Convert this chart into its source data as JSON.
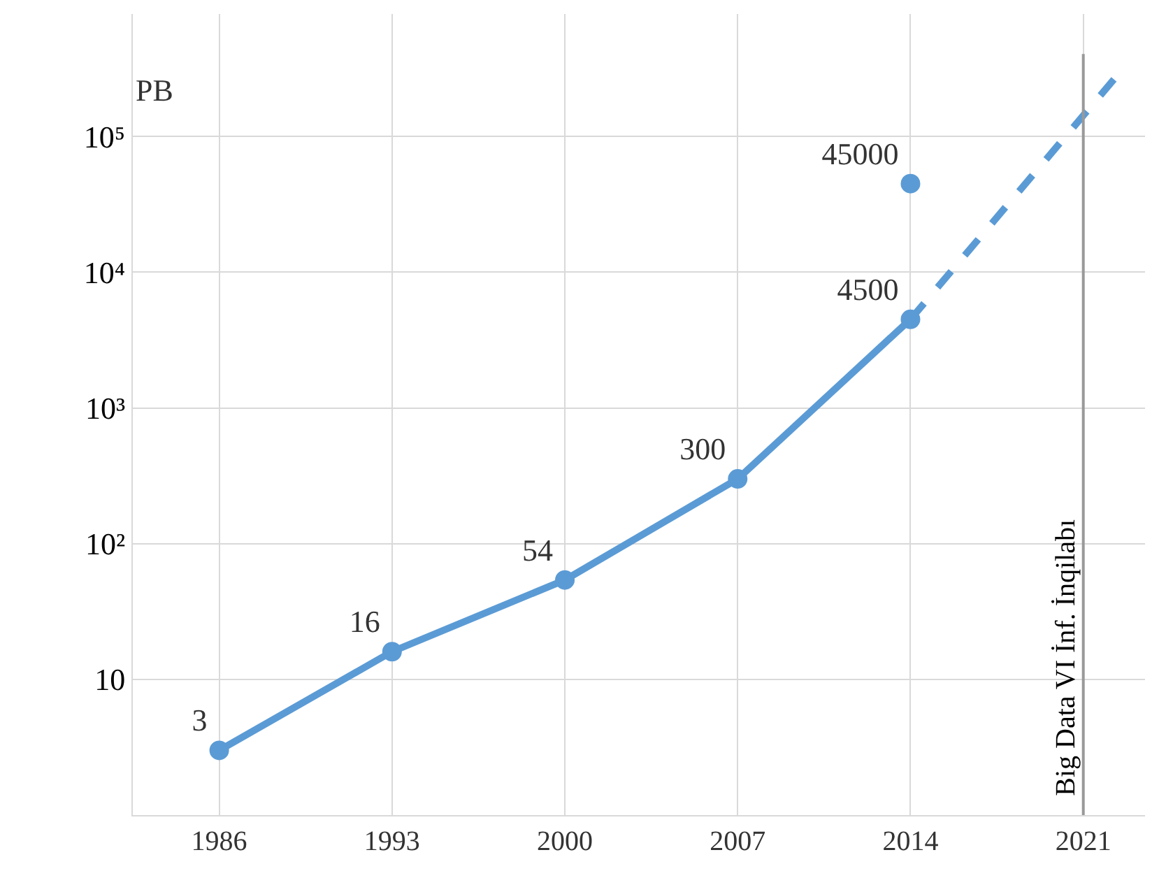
{
  "chart_data": {
    "type": "line",
    "ylabel": "PB",
    "log": "y",
    "grid": true,
    "legend": false,
    "xlim": [
      1982.5,
      2023.5
    ],
    "xticks": [
      1986,
      1993,
      2000,
      2007,
      2014,
      2021
    ],
    "ylim": [
      1,
      800000
    ],
    "yticks": [
      10,
      {
        "value": 100,
        "label": "10²"
      },
      {
        "value": 1000,
        "label": "10³"
      },
      {
        "value": 10000,
        "label": "10⁴"
      },
      {
        "value": 100000,
        "label": "10⁵"
      }
    ],
    "series": [
      {
        "color": "#5b9bd5",
        "x": [
          1986,
          1993,
          2000,
          2007,
          2014
        ],
        "values": [
          3,
          16,
          54,
          300,
          4500
        ],
        "value_labels": [
          "3",
          "16",
          "54",
          "300",
          "4500"
        ],
        "marker": "circle",
        "line_style": "solid"
      },
      {
        "color": "#5b9bd5",
        "x": [
          2014,
          2022.5
        ],
        "values": [
          4500,
          300000
        ],
        "marker": "none",
        "line_style": "dashed"
      },
      {
        "type": "scatter",
        "color": "#5b9bd5",
        "x": [
          2014
        ],
        "values": [
          45000
        ],
        "value_labels": [
          "45000"
        ],
        "marker": "circle"
      }
    ],
    "ref_lines": [
      {
        "axis": "x",
        "value": 2021,
        "label": "Big Data VI İnf. İnqilabı",
        "color": "#999999"
      }
    ]
  }
}
